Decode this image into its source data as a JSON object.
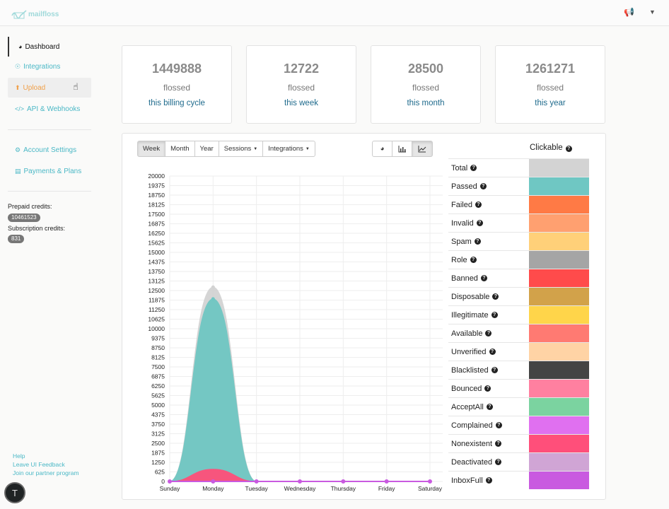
{
  "app": {
    "logo_text": "mailfloss"
  },
  "sidebar": {
    "items": [
      {
        "label": "Dashboard",
        "icon": "dashboard-icon"
      },
      {
        "label": "Integrations",
        "icon": "integrations-icon"
      },
      {
        "label": "Upload",
        "icon": "upload-icon"
      },
      {
        "label": "API & Webhooks",
        "icon": "code-icon"
      },
      {
        "label": "Account Settings",
        "icon": "gears-icon"
      },
      {
        "label": "Payments & Plans",
        "icon": "card-icon"
      }
    ],
    "prepaid_label": "Prepaid credits:",
    "prepaid_value": "10461523",
    "subscription_label": "Subscription credits:",
    "subscription_value": "831",
    "footer": {
      "help": "Help",
      "feedback": "Leave UI Feedback",
      "partner": "Join our partner program"
    }
  },
  "stats": [
    {
      "value": "1449888",
      "label": "flossed",
      "period": "this billing cycle"
    },
    {
      "value": "12722",
      "label": "flossed",
      "period": "this week"
    },
    {
      "value": "28500",
      "label": "flossed",
      "period": "this month"
    },
    {
      "value": "1261271",
      "label": "flossed",
      "period": "this year"
    }
  ],
  "toolbar": {
    "range": [
      "Week",
      "Month",
      "Year"
    ],
    "sessions": "Sessions",
    "integrations": "Integrations",
    "active_range": "Week",
    "chart_types": [
      "pie-chart-icon",
      "bar-chart-icon",
      "line-chart-icon"
    ],
    "active_chart_type": "line-chart-icon"
  },
  "legend": {
    "header": "Clickable",
    "items": [
      {
        "name": "Total",
        "color": "#d3d3d3"
      },
      {
        "name": "Passed",
        "color": "#6fc7c3"
      },
      {
        "name": "Failed",
        "color": "#ff7a45"
      },
      {
        "name": "Invalid",
        "color": "#ffa070"
      },
      {
        "name": "Spam",
        "color": "#ffd079"
      },
      {
        "name": "Role",
        "color": "#a5a5a5"
      },
      {
        "name": "Banned",
        "color": "#ff4b4b"
      },
      {
        "name": "Disposable",
        "color": "#d2a24a"
      },
      {
        "name": "Illegitimate",
        "color": "#ffd54a"
      },
      {
        "name": "Available",
        "color": "#ff7a72"
      },
      {
        "name": "Unverified",
        "color": "#ffd3a5"
      },
      {
        "name": "Blacklisted",
        "color": "#444444"
      },
      {
        "name": "Bounced",
        "color": "#ff80a0"
      },
      {
        "name": "AcceptAll",
        "color": "#7bd3a0"
      },
      {
        "name": "Complained",
        "color": "#e070f0"
      },
      {
        "name": "Nonexistent",
        "color": "#ff4f7a"
      },
      {
        "name": "Deactivated",
        "color": "#d0a5d5"
      },
      {
        "name": "InboxFull",
        "color": "#c95ae0"
      }
    ]
  },
  "chart_data": {
    "type": "area",
    "categories": [
      "Sunday",
      "Monday",
      "Tuesday",
      "Wednesday",
      "Thursday",
      "Friday",
      "Saturday"
    ],
    "ylim": [
      0,
      20000
    ],
    "yticks": [
      0,
      625,
      1250,
      1875,
      2500,
      3125,
      3750,
      4375,
      5000,
      5625,
      6250,
      6875,
      7500,
      8125,
      8750,
      9375,
      10000,
      10625,
      11250,
      11875,
      12500,
      13125,
      13750,
      14375,
      15000,
      15625,
      16250,
      16875,
      17500,
      18125,
      18750,
      19375,
      20000
    ],
    "series": [
      {
        "name": "Total",
        "color": "#d3d3d3",
        "values": [
          0,
          12722,
          0,
          0,
          0,
          0,
          0
        ]
      },
      {
        "name": "Passed",
        "color": "#6fc7c3",
        "values": [
          0,
          11950,
          0,
          0,
          0,
          0,
          0
        ]
      },
      {
        "name": "Nonexistent",
        "color": "#ff4f7a",
        "values": [
          0,
          800,
          0,
          0,
          0,
          0,
          0
        ]
      },
      {
        "name": "InboxFull",
        "color": "#c95ae0",
        "values": [
          0,
          0,
          0,
          0,
          0,
          0,
          0
        ]
      }
    ]
  }
}
